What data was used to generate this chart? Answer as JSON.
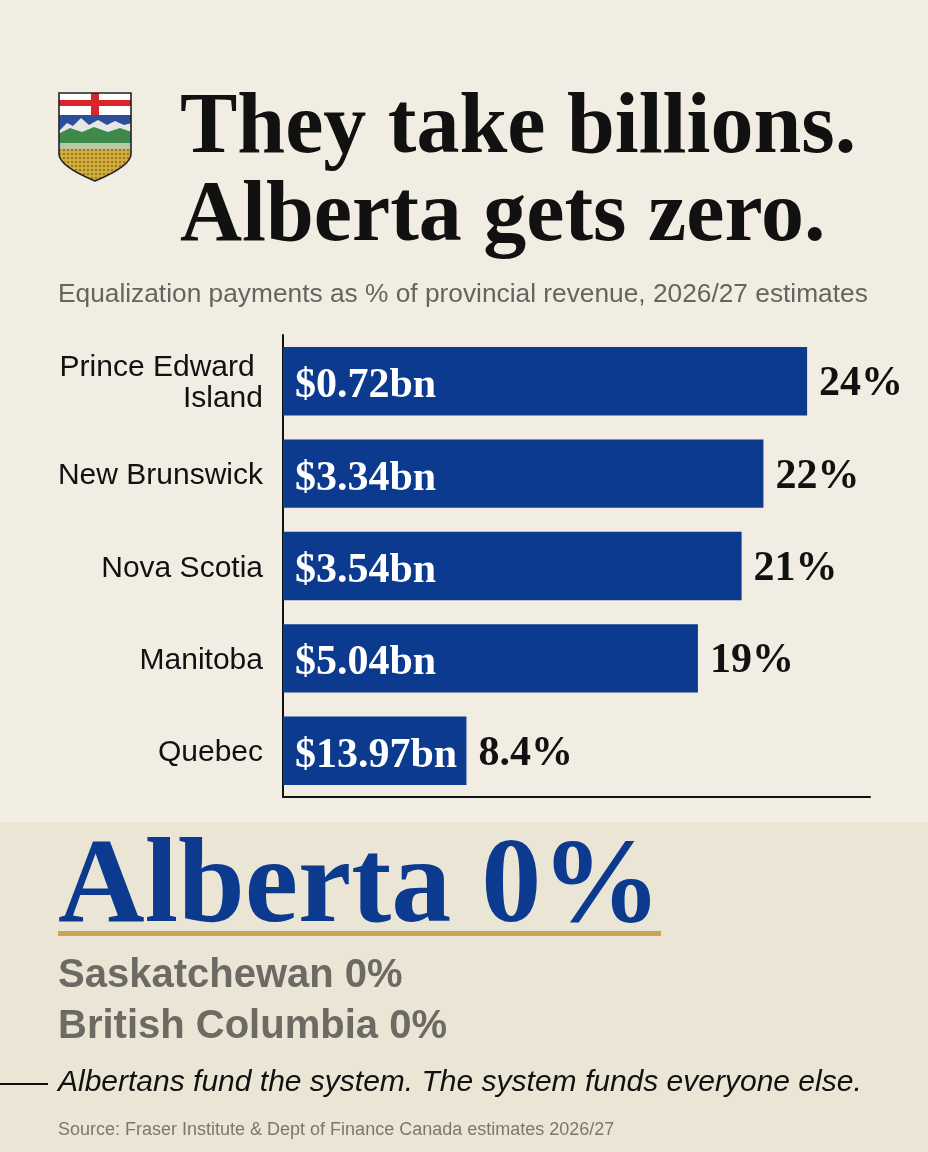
{
  "chart_data": {
    "type": "bar",
    "orientation": "horizontal",
    "title": "They take billions. Alberta gets zero.",
    "subtitle": "Equalization payments as % of provincial revenue, 2026/27 estimates",
    "categories": [
      "Prince Edward Island",
      "New Brunswick",
      "Nova Scotia",
      "Manitoba",
      "Quebec"
    ],
    "values": [
      24,
      22,
      21,
      19,
      8.4
    ],
    "color": "#0b3a8e",
    "value_labels": [
      "24%",
      "22%",
      "21%",
      "19%",
      "8.4%"
    ],
    "tick_labels": "y",
    "annotations": [
      {
        "text": "$0.72bn",
        "y": "Prince Edward Island"
      },
      {
        "text": "$3.34bn",
        "y": "New Brunswick"
      },
      {
        "text": "$3.54bn",
        "y": "Nova Scotia"
      },
      {
        "text": "$5.04bn",
        "y": "Manitoba"
      },
      {
        "text": "$13.97bn",
        "y": "Quebec"
      },
      "Alberta 0%",
      "Saskatchewan 0%",
      "British Columbia 0%",
      "Albertans fund the system. The system funds everyone else.",
      "Source: Fraser Institute & Dept of Finance Canada estimates 2026/27"
    ]
  }
}
